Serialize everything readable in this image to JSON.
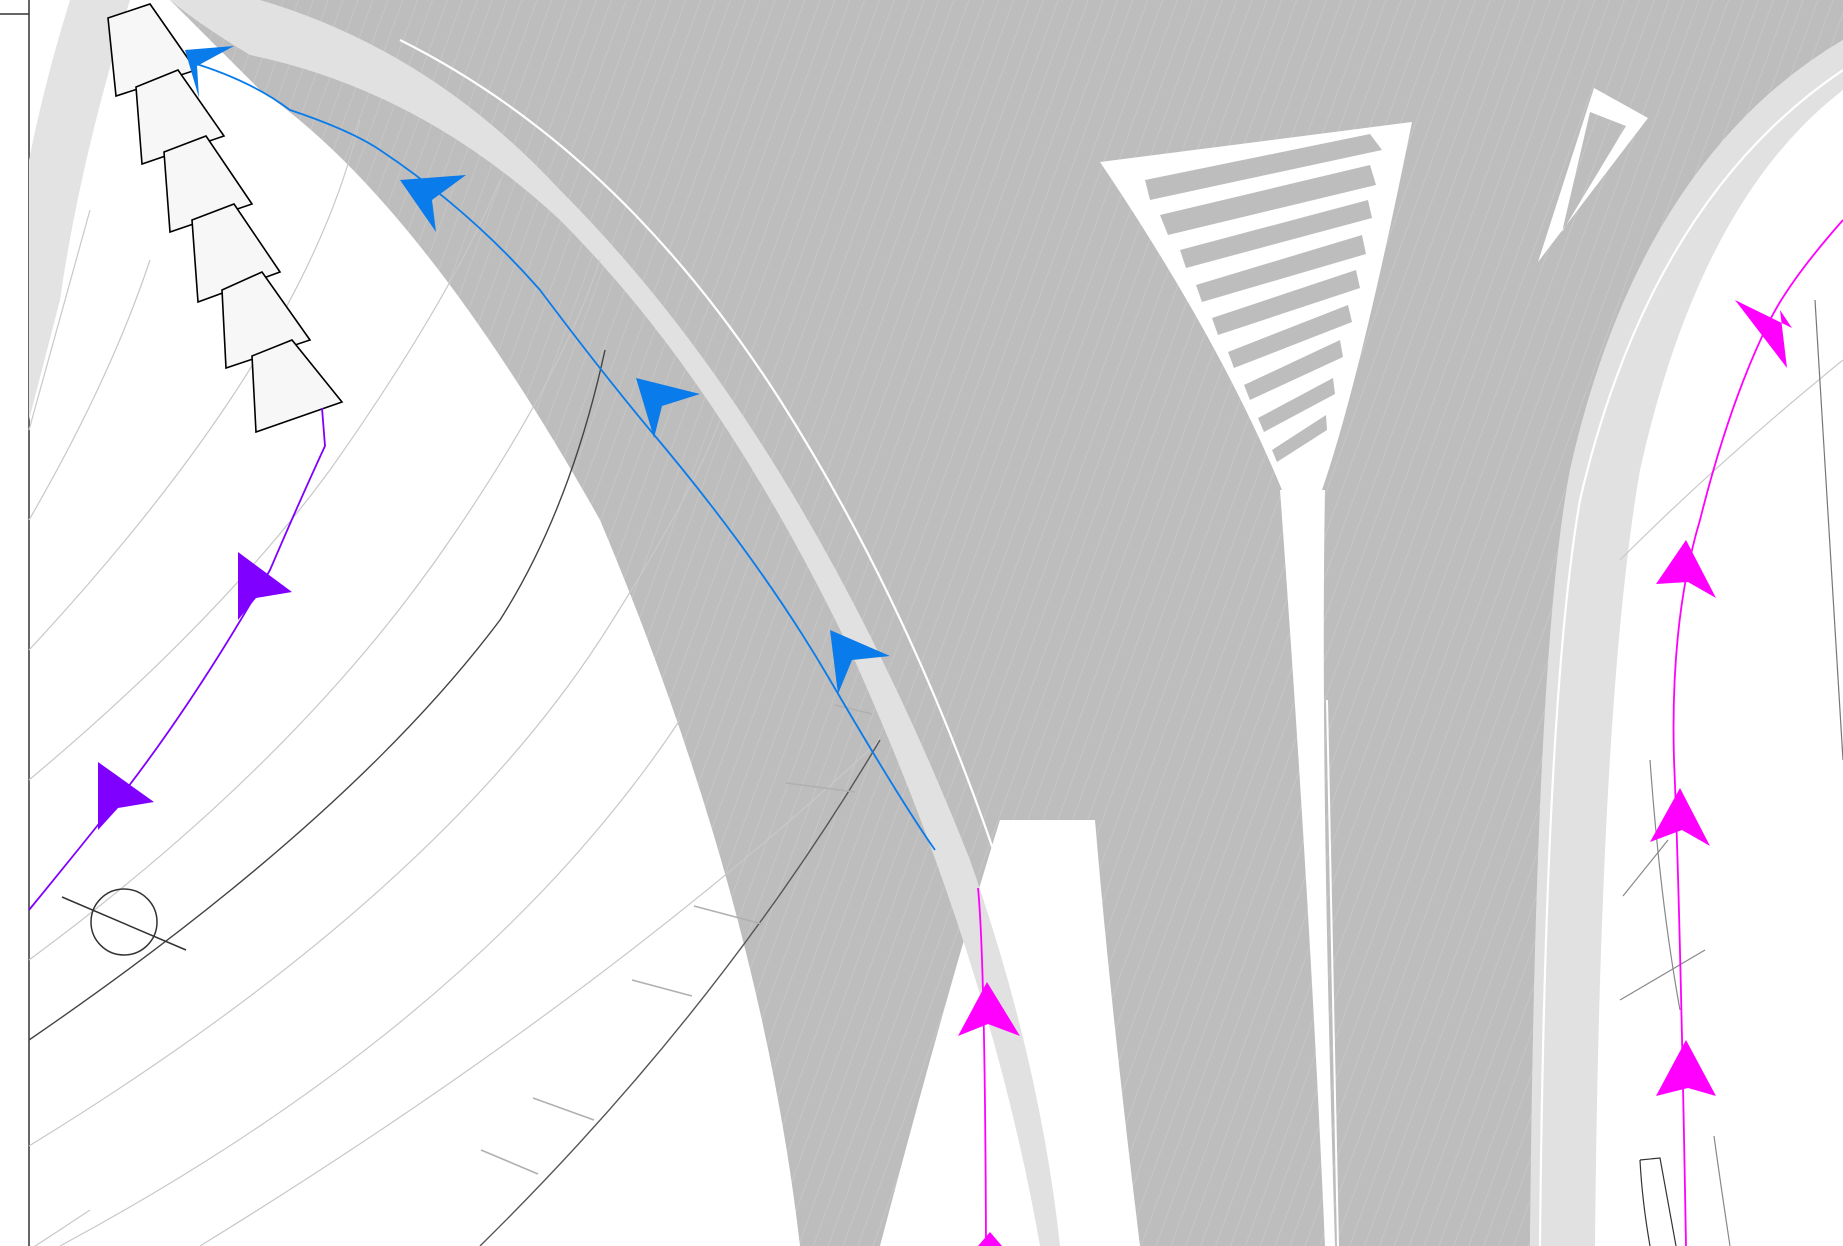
{
  "map": {
    "colors": {
      "background": "#ffffff",
      "road": "#bdbdbd",
      "road_shoulder": "#e0e0e0",
      "route_blue": "#0a7bea",
      "route_purple": "#8000ff",
      "route_magenta": "#ff00ff",
      "marker_fill": "#f7f7f7",
      "contour": "#c8c8c8"
    },
    "icons": {
      "route_arrow": "arrowhead-icon",
      "survey_point": "survey-point-icon",
      "trapezoid_marker": "trapezoid-marker-icon"
    }
  }
}
